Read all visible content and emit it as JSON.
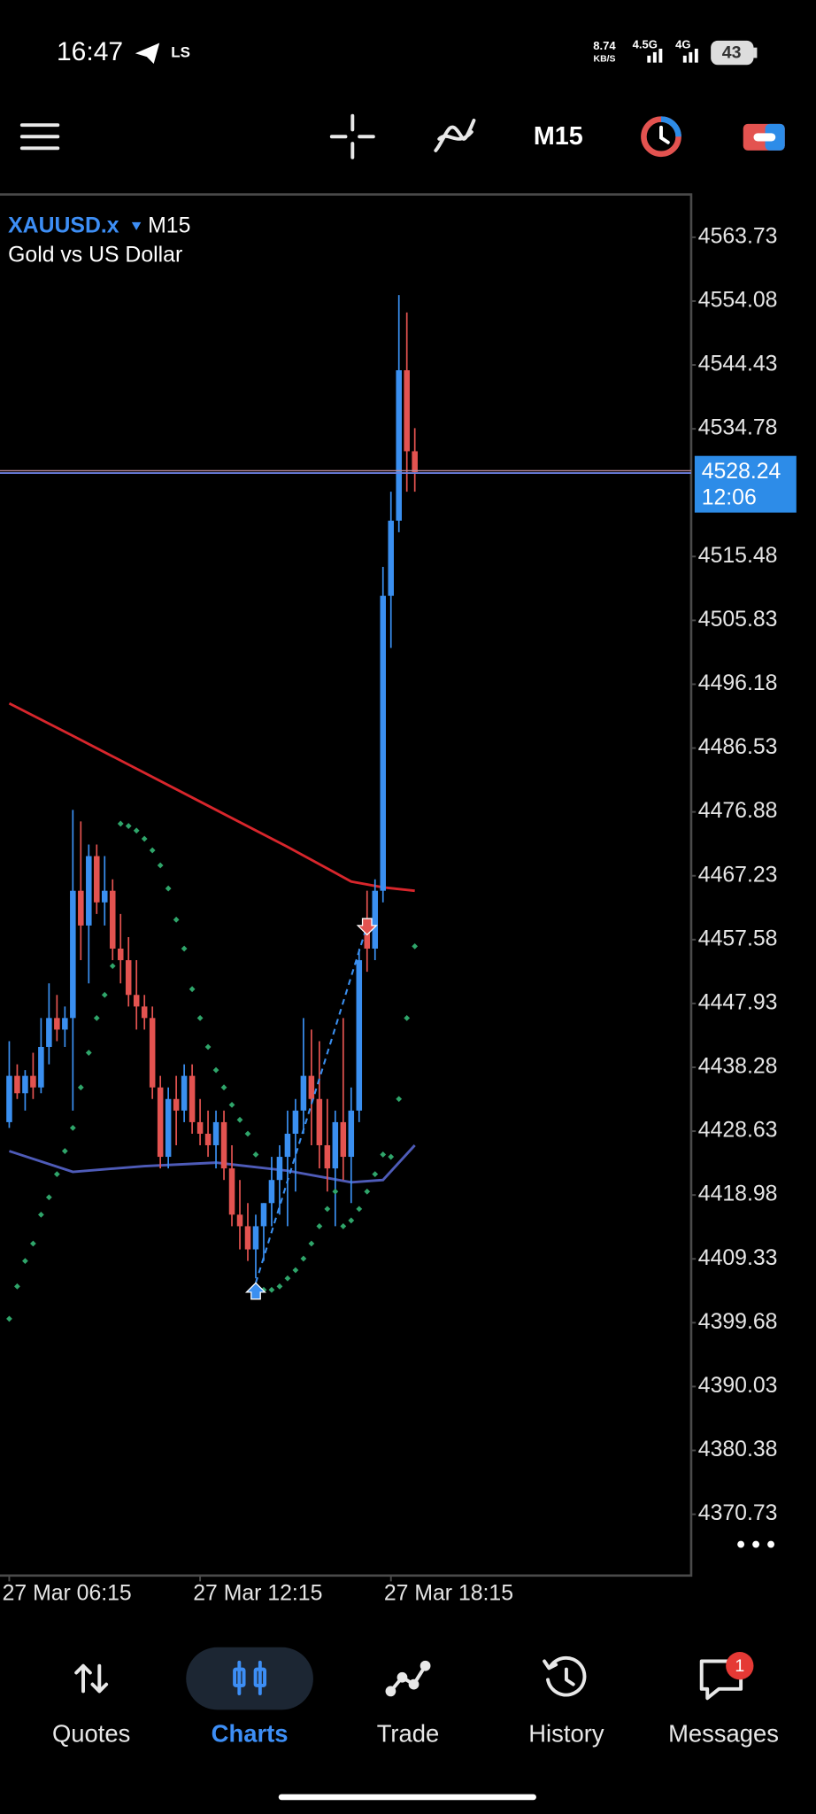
{
  "status_bar": {
    "time": "16:47",
    "carrier_label": "LS",
    "net_speed": "8.74",
    "net_speed_unit": "KB/S",
    "signal_1": "4.5G",
    "signal_2": "4G",
    "battery": "43"
  },
  "toolbar": {
    "timeframe": "M15"
  },
  "chart_data": {
    "type": "candlestick",
    "symbol": "XAUUSD.x",
    "timeframe": "M15",
    "description": "Gold vs US Dollar",
    "colors": {
      "up": "#3a8ff0",
      "down": "#e35350"
    },
    "open": [
      4429.99,
      4436.99,
      4434.36,
      4436.99,
      4435.24,
      4441.36,
      4445.73,
      4443.98,
      4445.73,
      4464.96,
      4459.71,
      4470.2,
      4463.21,
      4464.96,
      4456.22,
      4454.47,
      4449.22,
      4447.47,
      4445.73,
      4435.24,
      4424.75,
      4433.49,
      4431.74,
      4436.99,
      4429.99,
      4428.24,
      4426.5,
      4429.99,
      4423.0,
      4416.01,
      4414.26,
      4410.76,
      4414.26,
      4417.76,
      4421.25,
      4424.75,
      4428.24,
      4431.74,
      4436.99,
      4433.49,
      4426.5,
      4423.0,
      4429.99,
      4424.75,
      4431.74,
      4459.71,
      4456.22,
      4464.96,
      4509.54,
      4520.9,
      4543.63,
      4531.39
    ],
    "high": [
      4442.23,
      4438.73,
      4437.86,
      4440.48,
      4445.73,
      4450.97,
      4449.22,
      4447.47,
      4477.19,
      4475.45,
      4471.95,
      4471.95,
      4470.2,
      4466.7,
      4461.46,
      4457.96,
      4454.47,
      4449.22,
      4447.47,
      4436.99,
      4435.24,
      4436.99,
      4438.73,
      4438.73,
      4433.49,
      4431.74,
      4431.74,
      4431.74,
      4426.5,
      4421.25,
      4417.76,
      4416.01,
      4417.76,
      4424.75,
      4426.5,
      4431.74,
      4433.49,
      4445.73,
      4443.98,
      4442.23,
      4433.49,
      4431.74,
      4445.73,
      4435.24,
      4456.22,
      4464.96,
      4466.7,
      4513.91,
      4525.27,
      4554.99,
      4552.37,
      4534.88
    ],
    "low": [
      4429.12,
      4433.49,
      4431.74,
      4433.49,
      4434.36,
      4438.73,
      4442.23,
      4441.36,
      4431.74,
      4454.47,
      4450.97,
      4461.46,
      4459.71,
      4454.47,
      4450.97,
      4447.47,
      4443.98,
      4443.98,
      4433.49,
      4423.0,
      4423.0,
      4426.5,
      4429.99,
      4428.24,
      4426.5,
      4424.75,
      4423.0,
      4421.25,
      4414.26,
      4410.76,
      4409.01,
      4406.39,
      4409.01,
      4414.26,
      4416.01,
      4414.26,
      4419.5,
      4428.24,
      4426.5,
      4423.0,
      4419.5,
      4414.26,
      4421.25,
      4417.76,
      4429.99,
      4452.72,
      4454.47,
      4463.21,
      4501.67,
      4519.15,
      4525.27,
      4525.27
    ],
    "close": [
      4436.99,
      4434.36,
      4436.99,
      4435.24,
      4441.36,
      4445.73,
      4443.98,
      4445.73,
      4464.96,
      4459.71,
      4470.2,
      4463.21,
      4464.96,
      4456.22,
      4454.47,
      4449.22,
      4447.47,
      4445.73,
      4435.24,
      4424.75,
      4433.49,
      4431.74,
      4436.99,
      4429.99,
      4428.24,
      4426.5,
      4429.99,
      4423.0,
      4416.01,
      4414.26,
      4410.76,
      4414.26,
      4417.76,
      4421.25,
      4424.75,
      4428.24,
      4431.74,
      4436.99,
      4433.49,
      4426.5,
      4423.0,
      4429.99,
      4424.75,
      4431.74,
      4454.47,
      4456.22,
      4464.96,
      4509.54,
      4520.9,
      4543.63,
      4531.39,
      4528.24
    ],
    "moving_averages": [
      {
        "color": "#d8262c",
        "x": [
          0,
          8,
          17,
          26,
          35,
          43,
          47,
          51
        ],
        "values": [
          4493.28,
          4488.38,
          4482.79,
          4477.19,
          4471.6,
          4466.36,
          4465.48,
          4464.96
        ]
      },
      {
        "color": "#4e5bb8",
        "x": [
          0,
          8,
          17,
          26,
          35,
          43,
          47,
          51
        ],
        "values": [
          4425.62,
          4422.48,
          4423.35,
          4423.87,
          4422.65,
          4420.9,
          4421.25,
          4426.5
        ]
      }
    ],
    "sar": {
      "color": "#2fa56a",
      "values": [
        4400.27,
        4405.17,
        4409.01,
        4411.64,
        4416.01,
        4418.63,
        4422.13,
        4425.62,
        4429.12,
        4435.24,
        4440.48,
        4445.73,
        4449.22,
        4453.59,
        4475.1,
        4474.75,
        4474.05,
        4472.82,
        4471.08,
        4468.8,
        4465.31,
        4460.59,
        4456.22,
        4450.1,
        4445.73,
        4441.36,
        4437.86,
        4435.24,
        4432.61,
        4430.34,
        4428.24,
        4425.1,
        4404.64,
        4404.64,
        4405.17,
        4406.39,
        4407.62,
        4409.36,
        4411.64,
        4414.26,
        4416.88,
        4419.5,
        4414.26,
        4415.13,
        4416.88,
        4419.5,
        4422.13,
        4425.1,
        4424.75,
        4433.49,
        4445.73,
        4456.57
      ]
    },
    "last_price": {
      "value": 4528.24,
      "countdown": "12:06",
      "color": "#2d8ce8"
    },
    "ylim": [
      4361.46,
      4570.2
    ],
    "yticks": [
      4563.73,
      4554.08,
      4544.43,
      4534.78,
      4515.48,
      4505.83,
      4496.18,
      4486.53,
      4476.88,
      4467.23,
      4457.58,
      4447.93,
      4438.28,
      4428.63,
      4418.98,
      4409.33,
      4399.68,
      4390.03,
      4380.38,
      4370.73
    ],
    "xticks": [
      {
        "value": 0,
        "label": "27 Mar 06:15"
      },
      {
        "value": 24,
        "label": "27 Mar 12:15"
      },
      {
        "value": 48,
        "label": "27 Mar 18:15"
      }
    ]
  },
  "bottom_nav": {
    "items": [
      "Quotes",
      "Charts",
      "Trade",
      "History",
      "Messages"
    ],
    "active": 1,
    "badge": "1"
  }
}
